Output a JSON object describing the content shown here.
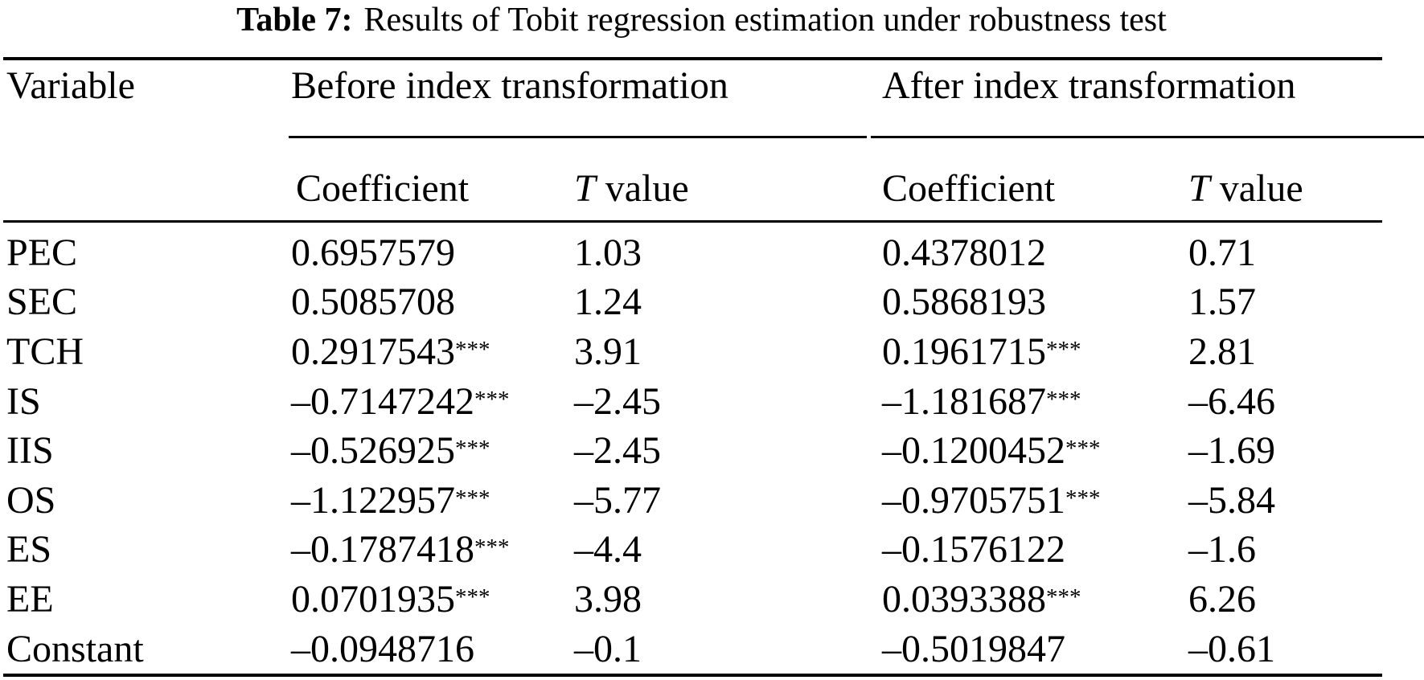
{
  "title": {
    "label": "Table 7:",
    "text": "Results of Tobit regression estimation under robustness test"
  },
  "colors": {
    "ink": "#000000",
    "paper": "#ffffff"
  },
  "table": {
    "col_variable": "Variable",
    "group_before": "Before index transformation",
    "group_after": "After index transformation",
    "sub_coefficient": "Coefficient",
    "sub_t_letter": "T",
    "sub_t_word": "value",
    "rows": [
      {
        "var": "PEC",
        "b_coef": "0.6957579",
        "b_stars": "",
        "b_t": "1.03",
        "a_coef": "0.4378012",
        "a_stars": "",
        "a_t": "0.71"
      },
      {
        "var": "SEC",
        "b_coef": "0.5085708",
        "b_stars": "",
        "b_t": "1.24",
        "a_coef": "0.5868193",
        "a_stars": "",
        "a_t": "1.57"
      },
      {
        "var": "TCH",
        "b_coef": "0.2917543",
        "b_stars": "***",
        "b_t": "3.91",
        "a_coef": "0.1961715",
        "a_stars": "***",
        "a_t": "2.81"
      },
      {
        "var": "IS",
        "b_coef": "–0.7147242",
        "b_stars": "***",
        "b_t": "–2.45",
        "a_coef": "–1.181687",
        "a_stars": "***",
        "a_t": "–6.46"
      },
      {
        "var": "IIS",
        "b_coef": "–0.526925",
        "b_stars": "***",
        "b_t": "–2.45",
        "a_coef": "–0.1200452",
        "a_stars": "***",
        "a_t": "–1.69"
      },
      {
        "var": "OS",
        "b_coef": "–1.122957",
        "b_stars": "***",
        "b_t": "–5.77",
        "a_coef": "–0.9705751",
        "a_stars": "***",
        "a_t": "–5.84"
      },
      {
        "var": "ES",
        "b_coef": "–0.1787418",
        "b_stars": "***",
        "b_t": "–4.4",
        "a_coef": "–0.1576122",
        "a_stars": "",
        "a_t": "–1.6"
      },
      {
        "var": "EE",
        "b_coef": "0.0701935",
        "b_stars": "***",
        "b_t": "3.98",
        "a_coef": "0.0393388",
        "a_stars": "***",
        "a_t": "6.26"
      },
      {
        "var": "Constant",
        "b_coef": "–0.0948716",
        "b_stars": "",
        "b_t": "–0.1",
        "a_coef": "–0.5019847",
        "a_stars": "",
        "a_t": "–0.61"
      }
    ]
  }
}
